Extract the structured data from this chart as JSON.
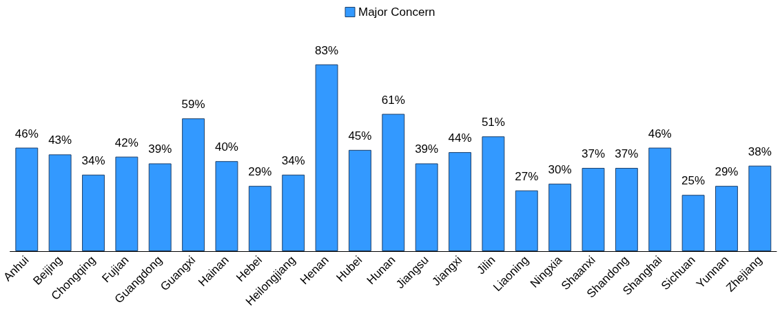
{
  "chart_data": {
    "type": "bar",
    "categories": [
      "Anhui",
      "Beijing",
      "Chongqing",
      "Fujian",
      "Guangdong",
      "Guangxi",
      "Hainan",
      "Hebei",
      "Heilongjiang",
      "Henan",
      "Hubei",
      "Hunan",
      "Jiangsu",
      "Jiangxi",
      "Jilin",
      "Liaoning",
      "Ningxia",
      "Shaanxi",
      "Shandong",
      "Shanghai",
      "Sichuan",
      "Yunnan",
      "Zhejiang"
    ],
    "series": [
      {
        "name": "Major Concern",
        "color": "#3399ff",
        "values": [
          46,
          43,
          34,
          42,
          39,
          59,
          40,
          29,
          34,
          83,
          45,
          61,
          39,
          44,
          51,
          27,
          30,
          37,
          37,
          46,
          25,
          29,
          38
        ],
        "value_labels": [
          "46%",
          "43%",
          "34%",
          "42%",
          "39%",
          "59%",
          "40%",
          "29%",
          "34%",
          "83%",
          "45%",
          "61%",
          "39%",
          "44%",
          "51%",
          "27%",
          "30%",
          "37%",
          "37%",
          "46%",
          "25%",
          "29%",
          "38%"
        ]
      }
    ],
    "legend": "top",
    "grid": false,
    "tick_labels": "x"
  }
}
